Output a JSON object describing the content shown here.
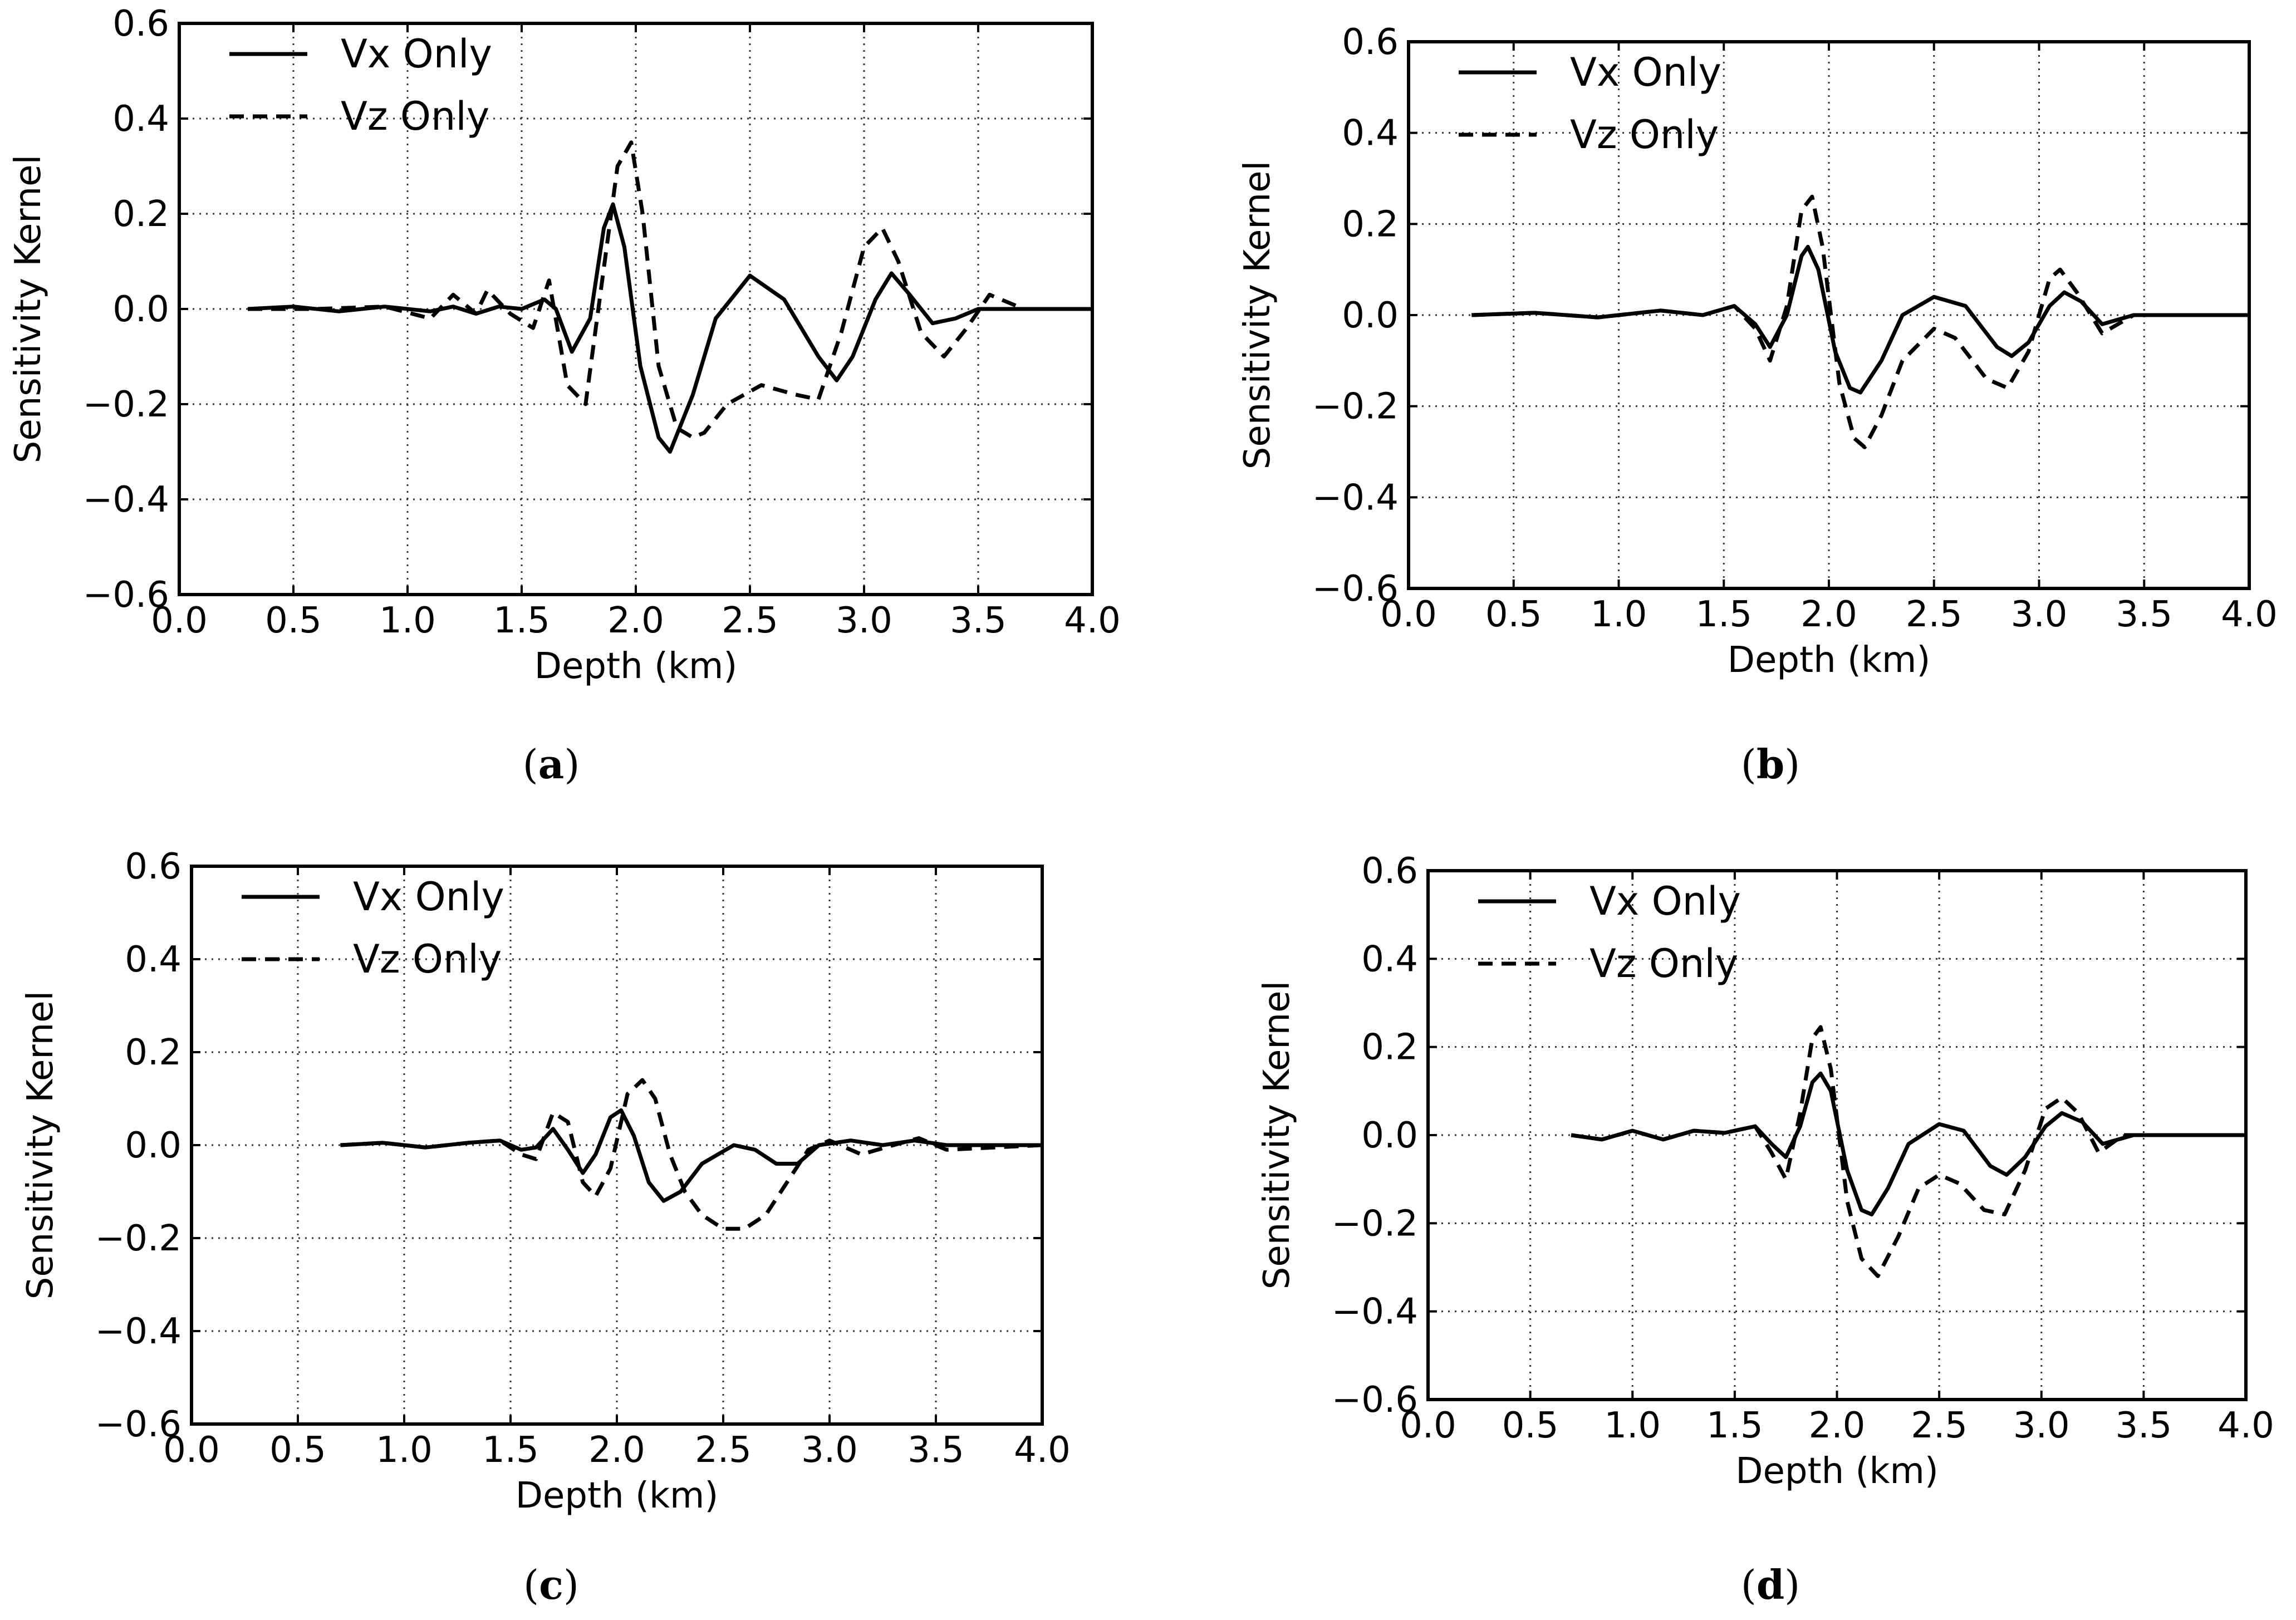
{
  "figure": {
    "panel_count": 4,
    "line_color": "#000000",
    "grid_color": "#333333",
    "background": "#ffffff"
  },
  "chart_data": [
    {
      "id": "a",
      "type": "line",
      "caption": "(a)",
      "caption_letter": "a",
      "xlabel": "Depth (km)",
      "ylabel": "Sensitivity Kernel",
      "xlim": [
        0.0,
        4.0
      ],
      "ylim": [
        -0.6,
        0.6
      ],
      "xticks": [
        "0.0",
        "0.5",
        "1.0",
        "1.5",
        "2.0",
        "2.5",
        "3.0",
        "3.5",
        "4.0"
      ],
      "yticks": [
        "0.6",
        "0.4",
        "0.2",
        "0.0",
        "−0.2",
        "−0.4",
        "−0.6"
      ],
      "grid": true,
      "legend_position": "top-left",
      "series": [
        {
          "name": "Vx Only",
          "style": "solid",
          "x": [
            0.3,
            0.5,
            0.7,
            0.9,
            1.1,
            1.2,
            1.3,
            1.4,
            1.5,
            1.6,
            1.65,
            1.72,
            1.8,
            1.86,
            1.9,
            1.95,
            2.02,
            2.1,
            2.15,
            2.25,
            2.35,
            2.5,
            2.65,
            2.8,
            2.88,
            2.95,
            3.05,
            3.12,
            3.2,
            3.3,
            3.4,
            3.5,
            3.6,
            3.8,
            4.0
          ],
          "y": [
            0.0,
            0.005,
            -0.005,
            0.005,
            -0.005,
            0.005,
            -0.01,
            0.005,
            0.0,
            0.02,
            0.0,
            -0.09,
            -0.02,
            0.17,
            0.22,
            0.13,
            -0.12,
            -0.27,
            -0.3,
            -0.18,
            -0.02,
            0.07,
            0.02,
            -0.1,
            -0.15,
            -0.1,
            0.02,
            0.075,
            0.03,
            -0.03,
            -0.02,
            0.0,
            0.0,
            0.0,
            0.0
          ]
        },
        {
          "name": "Vz Only",
          "style": "dashed",
          "x": [
            0.3,
            0.6,
            0.9,
            1.1,
            1.2,
            1.3,
            1.35,
            1.45,
            1.55,
            1.62,
            1.7,
            1.78,
            1.85,
            1.92,
            1.98,
            2.03,
            2.1,
            2.18,
            2.25,
            2.3,
            2.4,
            2.55,
            2.7,
            2.8,
            2.9,
            3.0,
            3.08,
            3.15,
            3.25,
            3.35,
            3.45,
            3.55,
            3.7,
            3.85,
            4.0
          ],
          "y": [
            0.0,
            0.0,
            0.005,
            -0.02,
            0.03,
            -0.01,
            0.04,
            -0.01,
            -0.04,
            0.06,
            -0.16,
            -0.2,
            0.05,
            0.3,
            0.35,
            0.2,
            -0.12,
            -0.25,
            -0.27,
            -0.26,
            -0.2,
            -0.16,
            -0.18,
            -0.19,
            -0.05,
            0.13,
            0.17,
            0.1,
            -0.05,
            -0.1,
            -0.04,
            0.03,
            0.0,
            0.0,
            0.0
          ]
        }
      ]
    },
    {
      "id": "b",
      "type": "line",
      "caption": "(b)",
      "caption_letter": "b",
      "xlabel": "Depth (km)",
      "ylabel": "Sensitivity Kernel",
      "xlim": [
        0.0,
        4.0
      ],
      "ylim": [
        -0.6,
        0.6
      ],
      "xticks": [
        "0.0",
        "0.5",
        "1.0",
        "1.5",
        "2.0",
        "2.5",
        "3.0",
        "3.5",
        "4.0"
      ],
      "yticks": [
        "0.6",
        "0.4",
        "0.2",
        "0.0",
        "−0.2",
        "−0.4",
        "−0.6"
      ],
      "grid": true,
      "legend_position": "top-left",
      "series": [
        {
          "name": "Vx Only",
          "style": "solid",
          "x": [
            0.3,
            0.6,
            0.9,
            1.2,
            1.4,
            1.55,
            1.65,
            1.72,
            1.8,
            1.87,
            1.9,
            1.95,
            2.03,
            2.1,
            2.15,
            2.25,
            2.35,
            2.5,
            2.65,
            2.8,
            2.87,
            2.95,
            3.05,
            3.12,
            3.2,
            3.3,
            3.45,
            3.6,
            4.0
          ],
          "y": [
            0.0,
            0.005,
            -0.005,
            0.01,
            0.0,
            0.02,
            -0.02,
            -0.07,
            0.0,
            0.13,
            0.15,
            0.1,
            -0.08,
            -0.16,
            -0.17,
            -0.1,
            0.0,
            0.04,
            0.02,
            -0.07,
            -0.09,
            -0.06,
            0.02,
            0.05,
            0.03,
            -0.02,
            0.0,
            0.0,
            0.0
          ]
        },
        {
          "name": "Vz Only",
          "style": "dashed",
          "x": [
            0.3,
            0.6,
            0.9,
            1.2,
            1.4,
            1.55,
            1.65,
            1.72,
            1.8,
            1.87,
            1.92,
            1.97,
            2.05,
            2.12,
            2.17,
            2.25,
            2.35,
            2.5,
            2.6,
            2.75,
            2.85,
            2.95,
            3.05,
            3.1,
            3.18,
            3.3,
            3.45,
            3.6,
            4.0
          ],
          "y": [
            0.0,
            0.005,
            -0.005,
            0.01,
            0.0,
            0.02,
            -0.03,
            -0.1,
            0.02,
            0.23,
            0.26,
            0.15,
            -0.15,
            -0.27,
            -0.29,
            -0.22,
            -0.1,
            -0.03,
            -0.05,
            -0.14,
            -0.16,
            -0.08,
            0.08,
            0.1,
            0.05,
            -0.04,
            0.0,
            0.0,
            0.0
          ]
        }
      ]
    },
    {
      "id": "c",
      "type": "line",
      "caption": "(c)",
      "caption_letter": "c",
      "xlabel": "Depth (km)",
      "ylabel": "Sensitivity Kernel",
      "xlim": [
        0.0,
        4.0
      ],
      "ylim": [
        -0.6,
        0.6
      ],
      "xticks": [
        "0.0",
        "0.5",
        "1.0",
        "1.5",
        "2.0",
        "2.5",
        "3.0",
        "3.5",
        "4.0"
      ],
      "yticks": [
        "0.6",
        "0.4",
        "0.2",
        "0.0",
        "−0.2",
        "−0.4",
        "−0.6"
      ],
      "grid": true,
      "legend_position": "top-left",
      "series": [
        {
          "name": "Vx Only",
          "style": "solid",
          "x": [
            0.7,
            0.9,
            1.1,
            1.3,
            1.45,
            1.55,
            1.62,
            1.7,
            1.77,
            1.84,
            1.9,
            1.97,
            2.02,
            2.08,
            2.15,
            2.22,
            2.3,
            2.4,
            2.55,
            2.65,
            2.75,
            2.85,
            2.95,
            3.1,
            3.25,
            3.4,
            3.55,
            4.0
          ],
          "y": [
            0.0,
            0.005,
            -0.005,
            0.005,
            0.01,
            -0.01,
            -0.005,
            0.035,
            -0.01,
            -0.06,
            -0.02,
            0.06,
            0.075,
            0.02,
            -0.08,
            -0.12,
            -0.1,
            -0.04,
            0.0,
            -0.01,
            -0.04,
            -0.04,
            0.0,
            0.01,
            0.0,
            0.01,
            0.0,
            0.0
          ]
        },
        {
          "name": "Vz Only",
          "style": "dashed",
          "x": [
            0.7,
            0.9,
            1.1,
            1.3,
            1.45,
            1.55,
            1.62,
            1.7,
            1.77,
            1.84,
            1.9,
            1.97,
            2.05,
            2.12,
            2.18,
            2.25,
            2.32,
            2.4,
            2.5,
            2.6,
            2.7,
            2.8,
            2.9,
            3.0,
            3.15,
            3.3,
            3.42,
            3.55,
            4.0
          ],
          "y": [
            0.0,
            0.005,
            -0.005,
            0.005,
            0.01,
            -0.02,
            -0.03,
            0.07,
            0.05,
            -0.08,
            -0.11,
            -0.05,
            0.11,
            0.14,
            0.1,
            -0.02,
            -0.1,
            -0.15,
            -0.18,
            -0.18,
            -0.15,
            -0.08,
            -0.01,
            0.01,
            -0.02,
            0.0,
            0.015,
            -0.01,
            0.0
          ]
        }
      ]
    },
    {
      "id": "d",
      "type": "line",
      "caption": "(d)",
      "caption_letter": "d",
      "xlabel": "Depth (km)",
      "ylabel": "Sensitivity Kernel",
      "xlim": [
        0.0,
        4.0
      ],
      "ylim": [
        -0.6,
        0.6
      ],
      "xticks": [
        "0.0",
        "0.5",
        "1.0",
        "1.5",
        "2.0",
        "2.5",
        "3.0",
        "3.5",
        "4.0"
      ],
      "yticks": [
        "0.6",
        "0.4",
        "0.2",
        "0.0",
        "−0.2",
        "−0.4",
        "−0.6"
      ],
      "grid": true,
      "legend_position": "top-left",
      "series": [
        {
          "name": "Vx Only",
          "style": "solid",
          "x": [
            0.7,
            0.85,
            1.0,
            1.15,
            1.3,
            1.45,
            1.6,
            1.68,
            1.75,
            1.82,
            1.88,
            1.92,
            1.97,
            2.05,
            2.12,
            2.17,
            2.25,
            2.35,
            2.5,
            2.62,
            2.75,
            2.83,
            2.92,
            3.02,
            3.1,
            3.2,
            3.3,
            3.45,
            3.6,
            4.0
          ],
          "y": [
            0.0,
            -0.01,
            0.01,
            -0.01,
            0.01,
            0.005,
            0.02,
            -0.02,
            -0.05,
            0.02,
            0.12,
            0.14,
            0.1,
            -0.08,
            -0.17,
            -0.18,
            -0.12,
            -0.02,
            0.025,
            0.01,
            -0.07,
            -0.09,
            -0.05,
            0.02,
            0.05,
            0.03,
            -0.02,
            0.0,
            0.0,
            0.0
          ]
        },
        {
          "name": "Vz Only",
          "style": "dashed",
          "x": [
            0.7,
            0.85,
            1.0,
            1.15,
            1.3,
            1.45,
            1.6,
            1.68,
            1.75,
            1.82,
            1.88,
            1.92,
            1.97,
            2.05,
            2.12,
            2.2,
            2.3,
            2.4,
            2.5,
            2.6,
            2.72,
            2.82,
            2.92,
            3.02,
            3.1,
            3.18,
            3.28,
            3.4,
            3.6,
            4.0
          ],
          "y": [
            0.0,
            -0.01,
            0.01,
            -0.01,
            0.01,
            0.005,
            0.02,
            -0.04,
            -0.1,
            0.05,
            0.22,
            0.245,
            0.15,
            -0.15,
            -0.28,
            -0.32,
            -0.23,
            -0.12,
            -0.09,
            -0.11,
            -0.17,
            -0.18,
            -0.08,
            0.06,
            0.085,
            0.05,
            -0.04,
            0.0,
            0.0,
            0.0
          ]
        }
      ]
    }
  ]
}
